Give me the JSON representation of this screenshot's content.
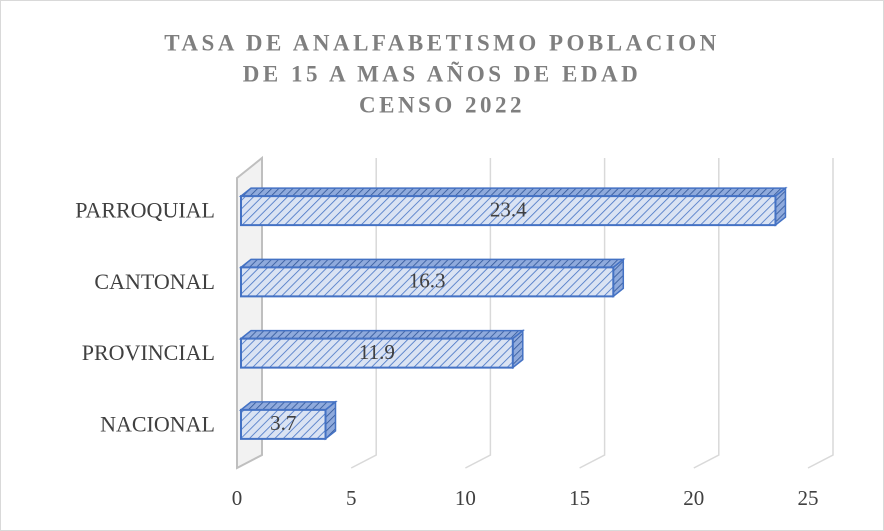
{
  "chart_data": {
    "type": "bar3d",
    "title": [
      "TASA DE ANALFABETISMO POBLACION",
      "DE 15 A MAS AÑOS DE EDAD",
      "CENSO 2022"
    ],
    "categories": [
      "NACIONAL",
      "PROVINCIAL",
      "CANTONAL",
      "PARROQUIAL"
    ],
    "values": [
      3.7,
      11.9,
      16.3,
      23.4
    ],
    "color": "#4472c4",
    "xlim": [
      0,
      25
    ],
    "xticks": [
      0,
      5,
      10,
      15,
      20,
      25
    ],
    "grid": true
  }
}
